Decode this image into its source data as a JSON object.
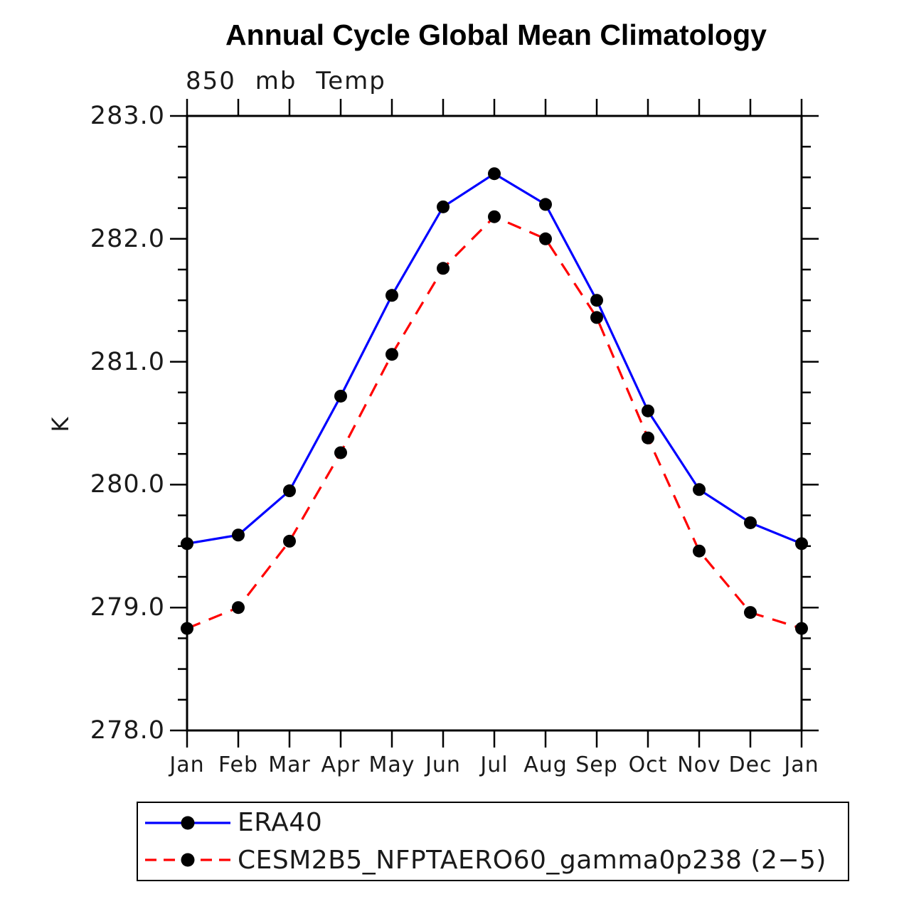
{
  "chart_data": {
    "type": "line",
    "title": "Annual Cycle Global Mean Climatology",
    "subtitle": "850 mb Temp",
    "ylabel": "K",
    "xlabel": "",
    "categories": [
      "Jan",
      "Feb",
      "Mar",
      "Apr",
      "May",
      "Jun",
      "Jul",
      "Aug",
      "Sep",
      "Oct",
      "Nov",
      "Dec",
      "Jan"
    ],
    "ylim": [
      278.0,
      283.0
    ],
    "yticks": [
      "278.0",
      "279.0",
      "280.0",
      "281.0",
      "282.0",
      "283.0"
    ],
    "y_minor_step": 0.25,
    "grid": false,
    "legend_position": "bottom",
    "marker": {
      "shape": "filled-circle",
      "color": "#000000"
    },
    "frame_color": "#000000",
    "series": [
      {
        "name": "ERA40",
        "color": "#0000ff",
        "style": "solid",
        "values": [
          279.52,
          279.59,
          279.95,
          280.72,
          281.54,
          282.26,
          282.53,
          282.28,
          281.5,
          280.6,
          279.96,
          279.69,
          279.52
        ]
      },
      {
        "name": "CESM2B5_NFPTAERO60_gamma0p238 (2−5)",
        "color": "#ff0000",
        "style": "dashed",
        "values": [
          278.83,
          279.0,
          279.54,
          280.26,
          281.06,
          281.76,
          282.18,
          282.0,
          281.36,
          280.38,
          279.46,
          278.96,
          278.83
        ]
      }
    ]
  }
}
